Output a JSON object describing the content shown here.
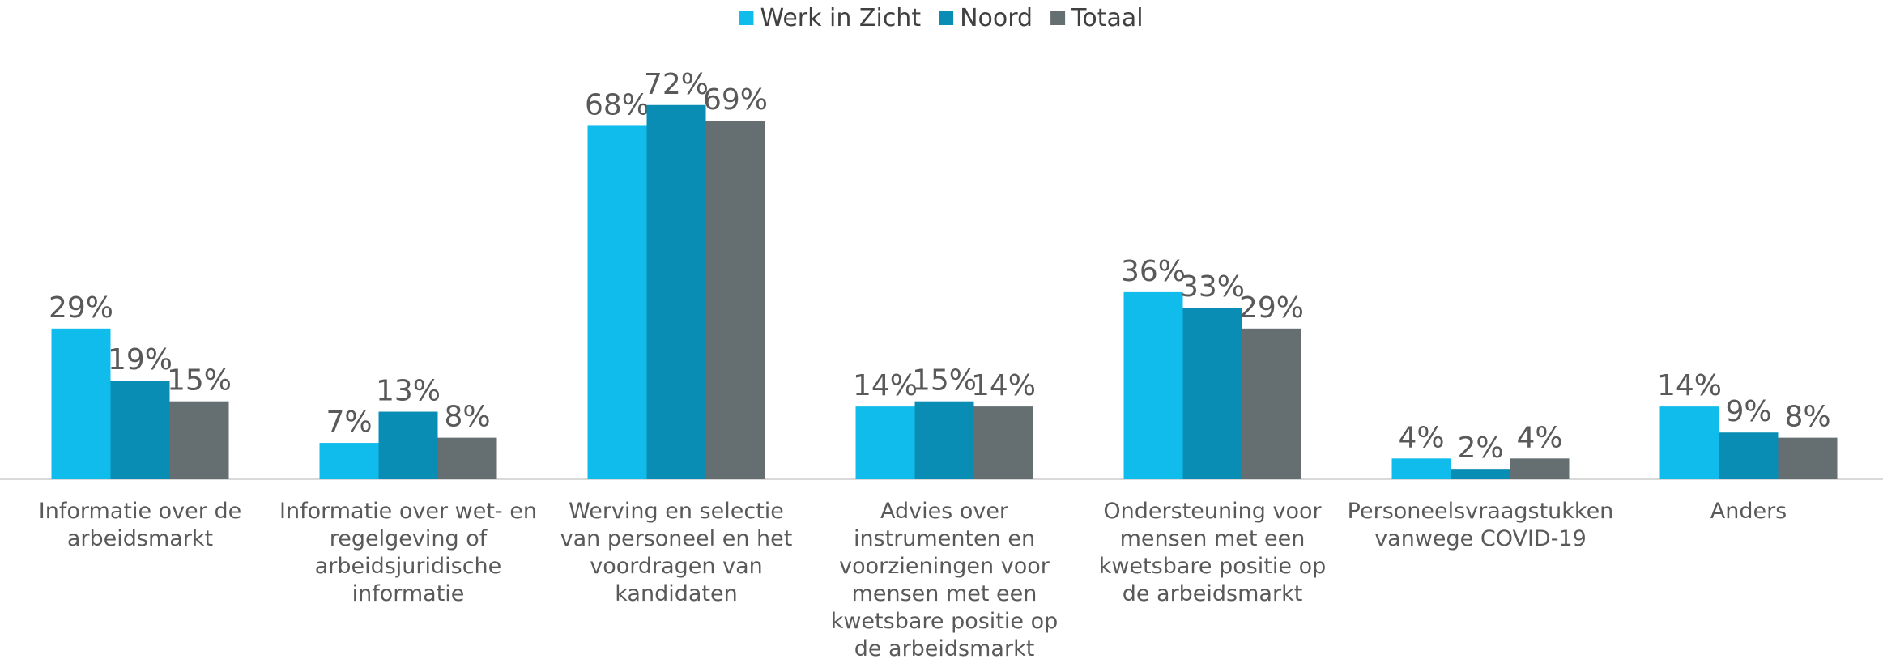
{
  "chart_data": {
    "type": "bar",
    "categories": [
      "Informatie over de arbeidsmarkt",
      "Informatie over wet- en regelgeving of arbeidsjuridische informatie",
      "Werving en selectie van personeel en het voordragen van kandidaten",
      "Advies over instrumenten en voorzieningen voor mensen met een kwetsbare positie op de arbeidsmarkt",
      "Ondersteuning voor mensen met een kwetsbare positie op de arbeidsmarkt",
      "Personeelsvraagstukken vanwege COVID-19",
      "Anders"
    ],
    "series": [
      {
        "name": "Werk in Zicht",
        "color": "#10bcec",
        "values": [
          29,
          7,
          68,
          14,
          36,
          4,
          14
        ],
        "value_labels": [
          "29%",
          "7%",
          "68%",
          "14%",
          "36%",
          "4%",
          "14%"
        ]
      },
      {
        "name": "Noord",
        "color": "#0a8db5",
        "values": [
          19,
          13,
          72,
          15,
          33,
          2,
          9
        ],
        "value_labels": [
          "19%",
          "13%",
          "72%",
          "15%",
          "33%",
          "2%",
          "9%"
        ]
      },
      {
        "name": "Totaal",
        "color": "#656e70",
        "values": [
          15,
          8,
          69,
          14,
          29,
          4,
          8
        ],
        "value_labels": [
          "15%",
          "8%",
          "69%",
          "14%",
          "29%",
          "4%",
          "8%"
        ]
      }
    ],
    "legend": "top"
  }
}
